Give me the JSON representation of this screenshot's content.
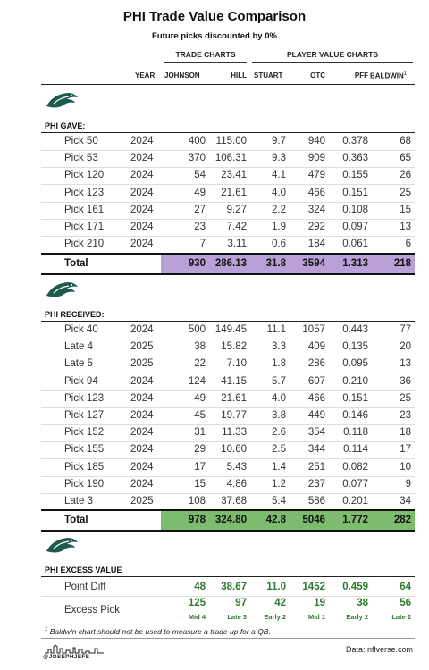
{
  "title": "PHI Trade Value Comparison",
  "subtitle": "Future picks discounted by 0%",
  "groups": {
    "trade_charts": "TRADE CHARTS",
    "player_value_charts": "PLAYER VALUE CHARTS"
  },
  "columns": {
    "year": "YEAR",
    "johnson": "JOHNSON",
    "hill": "HILL",
    "stuart": "STUART",
    "otc": "OTC",
    "pff": "PFF",
    "baldwin": "BALDWIN",
    "baldwin_note": "1"
  },
  "team_logo_icon": "eagles-logo-icon",
  "colors": {
    "gave_total": "#b9a0d6",
    "received_total": "#7dbb6e",
    "excess": "#2d7a2d"
  },
  "gave": {
    "label": "PHI GAVE:",
    "rows": [
      {
        "label": "Pick 50",
        "year": "2024",
        "johnson": "400",
        "hill": "115.00",
        "stuart": "9.7",
        "otc": "940",
        "pff": "0.378",
        "baldwin": "68"
      },
      {
        "label": "Pick 53",
        "year": "2024",
        "johnson": "370",
        "hill": "106.31",
        "stuart": "9.3",
        "otc": "909",
        "pff": "0.363",
        "baldwin": "65"
      },
      {
        "label": "Pick 120",
        "year": "2024",
        "johnson": "54",
        "hill": "23.41",
        "stuart": "4.1",
        "otc": "479",
        "pff": "0.155",
        "baldwin": "26"
      },
      {
        "label": "Pick 123",
        "year": "2024",
        "johnson": "49",
        "hill": "21.61",
        "stuart": "4.0",
        "otc": "466",
        "pff": "0.151",
        "baldwin": "25"
      },
      {
        "label": "Pick 161",
        "year": "2024",
        "johnson": "27",
        "hill": "9.27",
        "stuart": "2.2",
        "otc": "324",
        "pff": "0.108",
        "baldwin": "15"
      },
      {
        "label": "Pick 171",
        "year": "2024",
        "johnson": "23",
        "hill": "7.42",
        "stuart": "1.9",
        "otc": "292",
        "pff": "0.097",
        "baldwin": "13"
      },
      {
        "label": "Pick 210",
        "year": "2024",
        "johnson": "7",
        "hill": "3.11",
        "stuart": "0.6",
        "otc": "184",
        "pff": "0.061",
        "baldwin": "6"
      }
    ],
    "total": {
      "label": "Total",
      "johnson": "930",
      "hill": "286.13",
      "stuart": "31.8",
      "otc": "3594",
      "pff": "1.313",
      "baldwin": "218"
    }
  },
  "received": {
    "label": "PHI RECEIVED:",
    "rows": [
      {
        "label": "Pick 40",
        "year": "2024",
        "johnson": "500",
        "hill": "149.45",
        "stuart": "11.1",
        "otc": "1057",
        "pff": "0.443",
        "baldwin": "77"
      },
      {
        "label": "Late 4",
        "year": "2025",
        "johnson": "38",
        "hill": "15.82",
        "stuart": "3.3",
        "otc": "409",
        "pff": "0.135",
        "baldwin": "20"
      },
      {
        "label": "Late 5",
        "year": "2025",
        "johnson": "22",
        "hill": "7.10",
        "stuart": "1.8",
        "otc": "286",
        "pff": "0.095",
        "baldwin": "13"
      },
      {
        "label": "Pick 94",
        "year": "2024",
        "johnson": "124",
        "hill": "41.15",
        "stuart": "5.7",
        "otc": "607",
        "pff": "0.210",
        "baldwin": "36"
      },
      {
        "label": "Pick 123",
        "year": "2024",
        "johnson": "49",
        "hill": "21.61",
        "stuart": "4.0",
        "otc": "466",
        "pff": "0.151",
        "baldwin": "25"
      },
      {
        "label": "Pick 127",
        "year": "2024",
        "johnson": "45",
        "hill": "19.77",
        "stuart": "3.8",
        "otc": "449",
        "pff": "0.146",
        "baldwin": "23"
      },
      {
        "label": "Pick 152",
        "year": "2024",
        "johnson": "31",
        "hill": "11.33",
        "stuart": "2.6",
        "otc": "354",
        "pff": "0.118",
        "baldwin": "18"
      },
      {
        "label": "Pick 155",
        "year": "2024",
        "johnson": "29",
        "hill": "10.60",
        "stuart": "2.5",
        "otc": "344",
        "pff": "0.114",
        "baldwin": "17"
      },
      {
        "label": "Pick 185",
        "year": "2024",
        "johnson": "17",
        "hill": "5.43",
        "stuart": "1.4",
        "otc": "251",
        "pff": "0.082",
        "baldwin": "10"
      },
      {
        "label": "Pick 190",
        "year": "2024",
        "johnson": "15",
        "hill": "4.86",
        "stuart": "1.2",
        "otc": "237",
        "pff": "0.077",
        "baldwin": "9"
      },
      {
        "label": "Late 3",
        "year": "2025",
        "johnson": "108",
        "hill": "37.68",
        "stuart": "5.4",
        "otc": "586",
        "pff": "0.201",
        "baldwin": "34"
      }
    ],
    "total": {
      "label": "Total",
      "johnson": "978",
      "hill": "324.80",
      "stuart": "42.8",
      "otc": "5046",
      "pff": "1.772",
      "baldwin": "282"
    }
  },
  "excess": {
    "label": "PHI EXCESS VALUE",
    "point_diff": {
      "label": "Point Diff",
      "johnson": "48",
      "hill": "38.67",
      "stuart": "11.0",
      "otc": "1452",
      "pff": "0.459",
      "baldwin": "64"
    },
    "excess_pick": {
      "label": "Excess Pick",
      "johnson": "125",
      "hill": "97",
      "stuart": "42",
      "otc": "19",
      "pff": "38",
      "baldwin": "56",
      "johnson_sub": "Mid 4",
      "hill_sub": "Late 3",
      "stuart_sub": "Early 2",
      "otc_sub": "Mid 1",
      "pff_sub": "Early 2",
      "baldwin_sub": "Late 2"
    }
  },
  "footnote": {
    "mark": "1",
    "text": "Baldwin chart should not be used to measure a trade up for a QB."
  },
  "brand": "@JOSEPHJEFE",
  "source": "Data: nflverse.com"
}
